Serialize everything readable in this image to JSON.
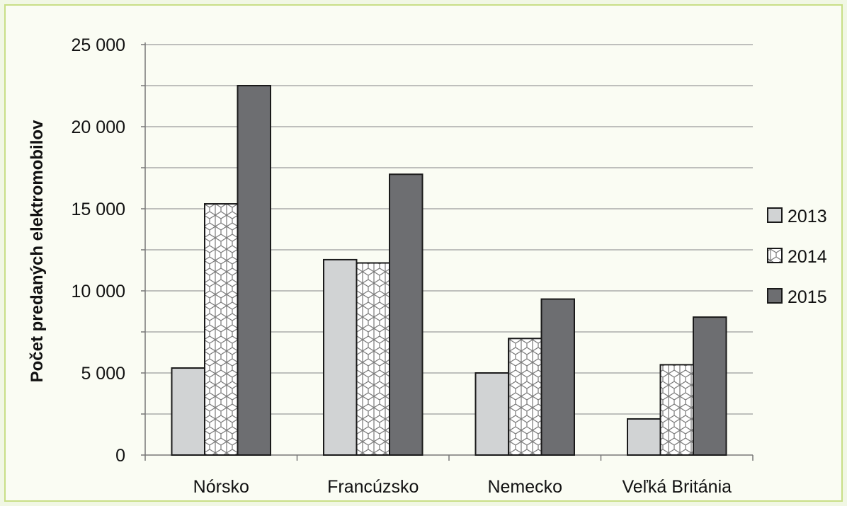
{
  "chart_data": {
    "type": "bar",
    "title": "",
    "ylabel": "Počet predaných elektromobilov",
    "xlabel": "",
    "categories": [
      "Nórsko",
      "Francúzsko",
      "Nemecko",
      "Veľká Británia"
    ],
    "series": [
      {
        "name": "2013",
        "values": [
          5300,
          11900,
          5000,
          2200
        ],
        "color": "#d1d3d4",
        "pattern": "solid"
      },
      {
        "name": "2014",
        "values": [
          15300,
          11700,
          7100,
          5500
        ],
        "color": "#ffffff",
        "pattern": "mesh"
      },
      {
        "name": "2015",
        "values": [
          22500,
          17100,
          9500,
          8400
        ],
        "color": "#6d6e71",
        "pattern": "solid"
      }
    ],
    "ylim": [
      0,
      25000
    ],
    "yticks": [
      0,
      5000,
      10000,
      15000,
      20000,
      25000
    ],
    "ytick_labels": [
      "0",
      "5 000",
      "10 000",
      "15 000",
      "20 000",
      "25 000"
    ],
    "grid": true,
    "legend_position": "right"
  }
}
